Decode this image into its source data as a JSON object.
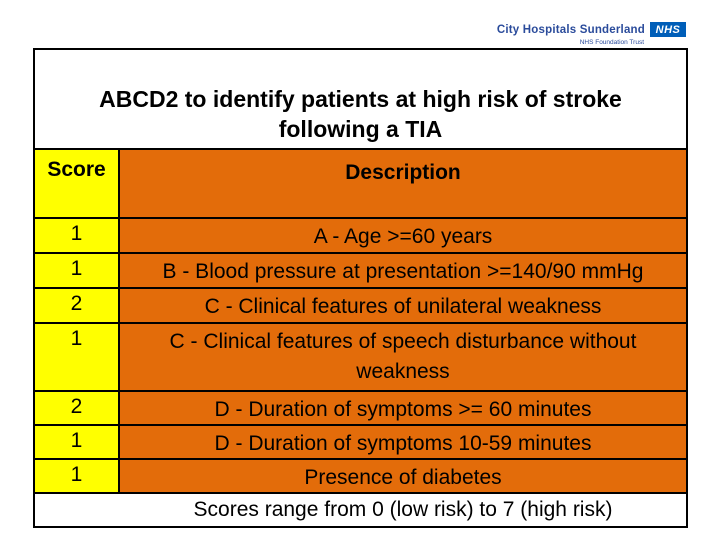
{
  "logo": {
    "organization": "City Hospitals Sunderland",
    "nhs_acronym": "NHS",
    "subtitle": "NHS Foundation Trust"
  },
  "title": {
    "line1": "ABCD2 to identify patients at high risk of stroke",
    "line2": "following a TIA"
  },
  "table": {
    "headers": {
      "score": "Score",
      "description": "Description"
    },
    "rows": [
      {
        "score": "1",
        "description": "A - Age >=60 years"
      },
      {
        "score": "1",
        "description": "B - Blood pressure at presentation >=140/90 mmHg"
      },
      {
        "score": "2",
        "description": "C - Clinical features of unilateral weakness"
      },
      {
        "score": "1",
        "description": "C - Clinical features of speech disturbance without weakness"
      },
      {
        "score": "2",
        "description": "D - Duration of symptoms >= 60 minutes"
      },
      {
        "score": "1",
        "description": "D - Duration of symptoms 10-59 minutes"
      },
      {
        "score": "1",
        "description": "Presence of diabetes"
      }
    ],
    "footer": "Scores range from 0 (low risk) to 7 (high risk)"
  },
  "colors": {
    "score_column_yellow": "#ffff00",
    "description_column_orange": "#e36c0a",
    "nhs_blue": "#005eb8",
    "logo_text_blue": "#2a4b9b",
    "border_black": "#000000",
    "background_white": "#ffffff"
  }
}
